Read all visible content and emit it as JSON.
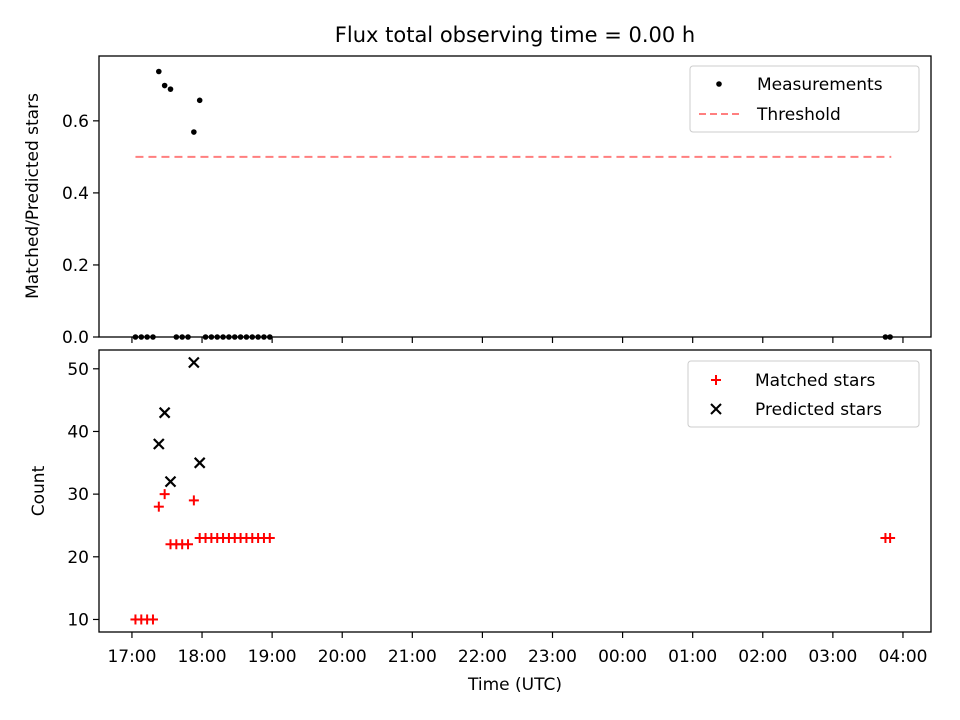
{
  "title": "Flux total observing time = 0.00 h",
  "chart_data": [
    {
      "type": "scatter",
      "ylabel": "Matched/Predicted stars",
      "xlabel": "",
      "ylim": [
        0,
        0.78
      ],
      "yticks": [
        0.0,
        0.2,
        0.4,
        0.6
      ],
      "ytick_labels": [
        "0.0",
        "0.2",
        "0.4",
        "0.6"
      ],
      "x_range_hours": [
        16.53,
        28.4
      ],
      "grid": false,
      "legend_position": "top-right",
      "legend": [
        "Measurements",
        "Threshold"
      ],
      "series": [
        {
          "name": "Measurements",
          "marker": "dot",
          "color": "#000000",
          "points": [
            {
              "x": "17:03",
              "y": 0.0
            },
            {
              "x": "17:08",
              "y": 0.0
            },
            {
              "x": "17:13",
              "y": 0.0
            },
            {
              "x": "17:18",
              "y": 0.0
            },
            {
              "x": "17:23",
              "y": 0.737
            },
            {
              "x": "17:28",
              "y": 0.698
            },
            {
              "x": "17:33",
              "y": 0.688
            },
            {
              "x": "17:38",
              "y": 0.0
            },
            {
              "x": "17:43",
              "y": 0.0
            },
            {
              "x": "17:48",
              "y": 0.0
            },
            {
              "x": "17:53",
              "y": 0.569
            },
            {
              "x": "17:58",
              "y": 0.657
            },
            {
              "x": "18:03",
              "y": 0.0
            },
            {
              "x": "18:08",
              "y": 0.0
            },
            {
              "x": "18:13",
              "y": 0.0
            },
            {
              "x": "18:18",
              "y": 0.0
            },
            {
              "x": "18:23",
              "y": 0.0
            },
            {
              "x": "18:28",
              "y": 0.0
            },
            {
              "x": "18:33",
              "y": 0.0
            },
            {
              "x": "18:38",
              "y": 0.0
            },
            {
              "x": "18:43",
              "y": 0.0
            },
            {
              "x": "18:48",
              "y": 0.0
            },
            {
              "x": "18:53",
              "y": 0.0
            },
            {
              "x": "18:58",
              "y": 0.0
            },
            {
              "x": "03:45",
              "y": 0.0
            },
            {
              "x": "03:49",
              "y": 0.0
            }
          ]
        },
        {
          "name": "Threshold",
          "style": "dashed",
          "color": "#ff7f7f",
          "points": [
            {
              "x": "17:03",
              "y": 0.5
            },
            {
              "x": "03:50",
              "y": 0.5
            }
          ]
        }
      ]
    },
    {
      "type": "scatter",
      "ylabel": "Count",
      "xlabel": "Time (UTC)",
      "ylim": [
        8,
        53
      ],
      "yticks": [
        10,
        20,
        30,
        40,
        50
      ],
      "ytick_labels": [
        "10",
        "20",
        "30",
        "40",
        "50"
      ],
      "x_tick_labels": [
        "17:00",
        "18:00",
        "19:00",
        "20:00",
        "21:00",
        "22:00",
        "23:00",
        "00:00",
        "01:00",
        "02:00",
        "03:00",
        "04:00"
      ],
      "x_ticks_hours": [
        17,
        18,
        19,
        20,
        21,
        22,
        23,
        24,
        25,
        26,
        27,
        28
      ],
      "x_range_hours": [
        16.53,
        28.4
      ],
      "grid": false,
      "legend_position": "top-right",
      "legend": [
        "Matched stars",
        "Predicted stars"
      ],
      "series": [
        {
          "name": "Matched stars",
          "marker": "plus",
          "color": "#ff0000",
          "points": [
            {
              "x": "17:03",
              "y": 10
            },
            {
              "x": "17:08",
              "y": 10
            },
            {
              "x": "17:13",
              "y": 10
            },
            {
              "x": "17:18",
              "y": 10
            },
            {
              "x": "17:23",
              "y": 28
            },
            {
              "x": "17:28",
              "y": 30
            },
            {
              "x": "17:33",
              "y": 22
            },
            {
              "x": "17:38",
              "y": 22
            },
            {
              "x": "17:43",
              "y": 22
            },
            {
              "x": "17:48",
              "y": 22
            },
            {
              "x": "17:53",
              "y": 29
            },
            {
              "x": "17:58",
              "y": 23
            },
            {
              "x": "18:03",
              "y": 23
            },
            {
              "x": "18:08",
              "y": 23
            },
            {
              "x": "18:13",
              "y": 23
            },
            {
              "x": "18:18",
              "y": 23
            },
            {
              "x": "18:23",
              "y": 23
            },
            {
              "x": "18:28",
              "y": 23
            },
            {
              "x": "18:33",
              "y": 23
            },
            {
              "x": "18:38",
              "y": 23
            },
            {
              "x": "18:43",
              "y": 23
            },
            {
              "x": "18:48",
              "y": 23
            },
            {
              "x": "18:53",
              "y": 23
            },
            {
              "x": "18:58",
              "y": 23
            },
            {
              "x": "03:45",
              "y": 23
            },
            {
              "x": "03:49",
              "y": 23
            }
          ]
        },
        {
          "name": "Predicted stars",
          "marker": "x",
          "color": "#000000",
          "points": [
            {
              "x": "17:23",
              "y": 38
            },
            {
              "x": "17:28",
              "y": 43
            },
            {
              "x": "17:33",
              "y": 32
            },
            {
              "x": "17:53",
              "y": 51
            },
            {
              "x": "17:58",
              "y": 35
            }
          ]
        }
      ]
    }
  ]
}
